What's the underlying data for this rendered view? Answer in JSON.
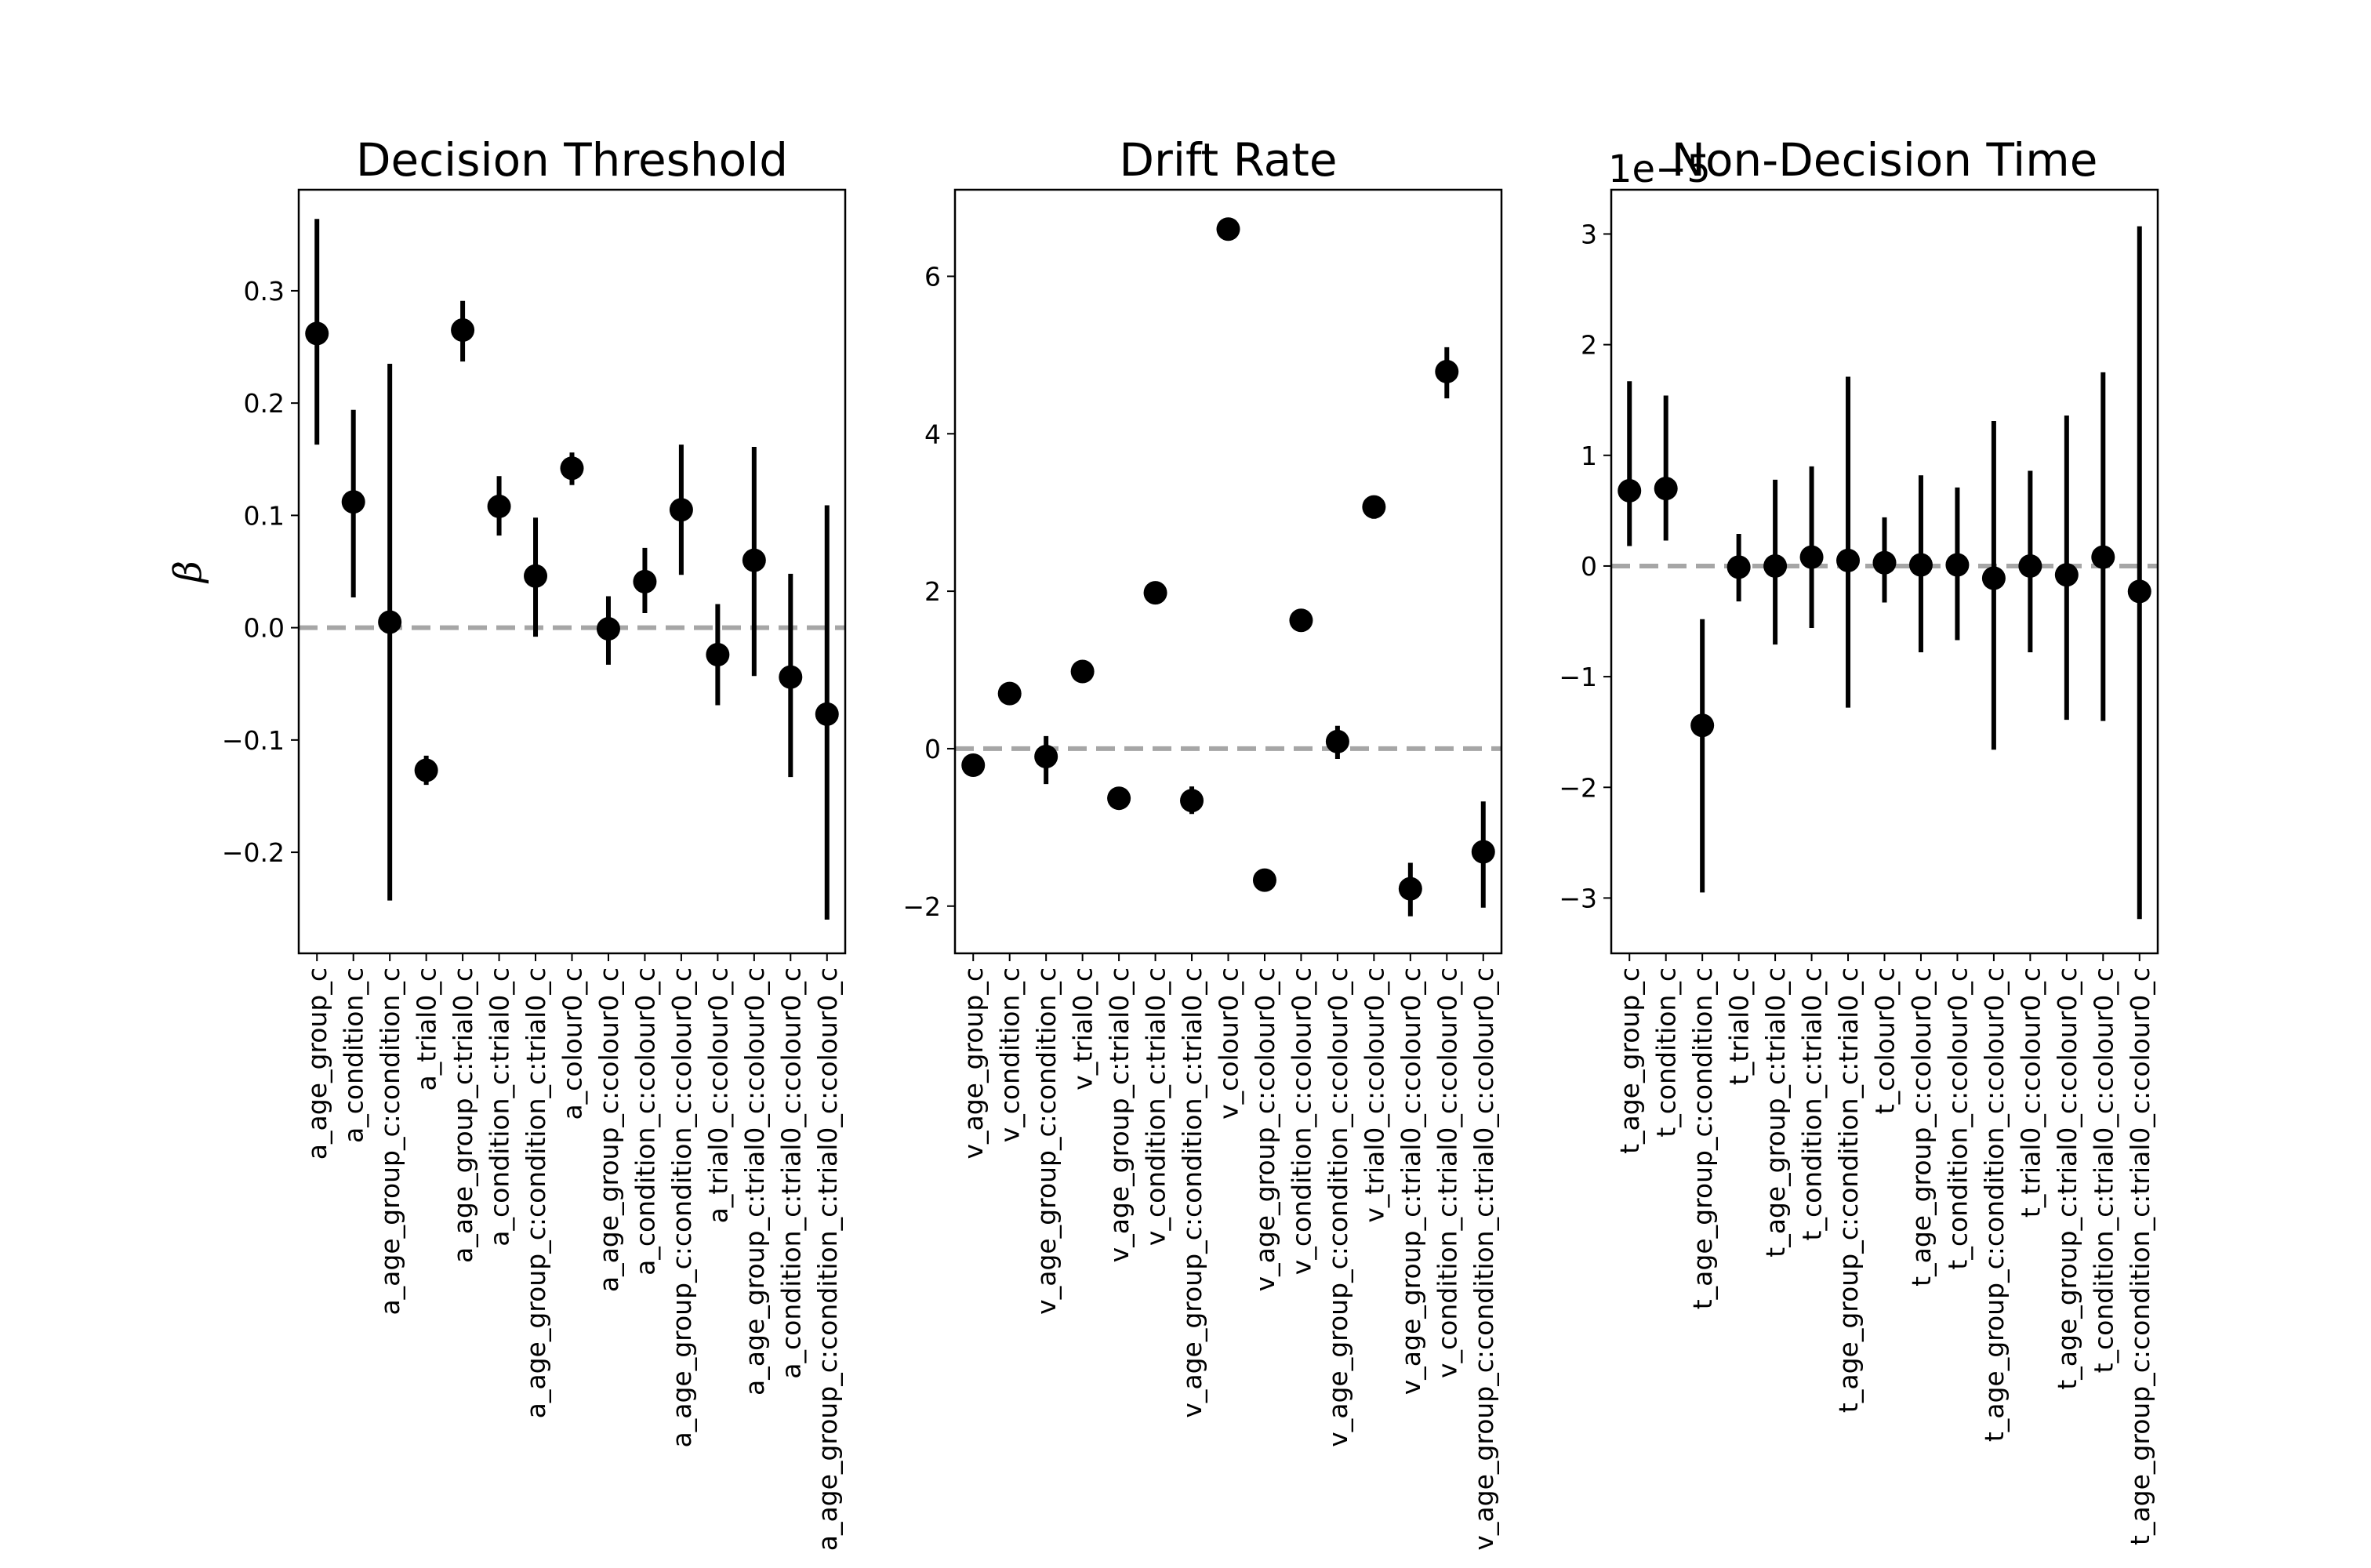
{
  "chart_data": [
    {
      "type": "scatter",
      "title": "Decision Threshold",
      "ylabel": "β",
      "offset_label": "",
      "ylim": [
        -0.29,
        0.39
      ],
      "yticks": [
        -0.2,
        -0.1,
        0.0,
        0.1,
        0.2,
        0.3
      ],
      "ytick_labels": [
        "−0.2",
        "−0.1",
        "0.0",
        "0.1",
        "0.2",
        "0.3"
      ],
      "reference_line": 0,
      "categories": [
        "a_age_group_c",
        "a_condition_c",
        "a_age_group_c:condition_c",
        "a_trial0_c",
        "a_age_group_c:trial0_c",
        "a_condition_c:trial0_c",
        "a_age_group_c:condition_c:trial0_c",
        "a_colour0_c",
        "a_age_group_c:colour0_c",
        "a_condition_c:colour0_c",
        "a_age_group_c:condition_c:colour0_c",
        "a_trial0_c:colour0_c",
        "a_age_group_c:trial0_c:colour0_c",
        "a_condition_c:trial0_c:colour0_c",
        "a_age_group_c:condition_c:trial0_c:colour0_c"
      ],
      "values": [
        0.262,
        0.112,
        0.005,
        -0.127,
        0.265,
        0.108,
        0.046,
        0.142,
        -0.001,
        0.041,
        0.105,
        -0.024,
        0.06,
        -0.044,
        -0.077
      ],
      "err_low": [
        0.163,
        0.027,
        -0.243,
        -0.14,
        0.237,
        0.082,
        -0.008,
        0.127,
        -0.033,
        0.013,
        0.047,
        -0.069,
        -0.043,
        -0.133,
        -0.26
      ],
      "err_high": [
        0.364,
        0.194,
        0.235,
        -0.114,
        0.291,
        0.135,
        0.098,
        0.156,
        0.028,
        0.071,
        0.163,
        0.021,
        0.161,
        0.048,
        0.109
      ]
    },
    {
      "type": "scatter",
      "title": "Drift Rate",
      "ylabel": "",
      "offset_label": "",
      "ylim": [
        -2.6,
        7.1
      ],
      "yticks": [
        -2,
        0,
        2,
        4,
        6
      ],
      "ytick_labels": [
        "−2",
        "0",
        "2",
        "4",
        "6"
      ],
      "reference_line": 0,
      "categories": [
        "v_age_group_c",
        "v_condition_c",
        "v_age_group_c:condition_c",
        "v_trial0_c",
        "v_age_group_c:trial0_c",
        "v_condition_c:trial0_c",
        "v_age_group_c:condition_c:trial0_c",
        "v_colour0_c",
        "v_age_group_c:colour0_c",
        "v_condition_c:colour0_c",
        "v_age_group_c:condition_c:colour0_c",
        "v_trial0_c:colour0_c",
        "v_age_group_c:trial0_c:colour0_c",
        "v_condition_c:trial0_c:colour0_c",
        "v_age_group_c:condition_c:trial0_c:colour0_c"
      ],
      "values": [
        -0.21,
        0.7,
        -0.1,
        0.98,
        -0.63,
        1.98,
        -0.66,
        6.6,
        -1.67,
        1.63,
        0.09,
        3.07,
        -1.78,
        4.79,
        -1.31
      ],
      "err_low": [
        -0.21,
        0.7,
        -0.45,
        0.98,
        -0.63,
        1.98,
        -0.83,
        6.6,
        -1.67,
        1.63,
        -0.13,
        2.92,
        -2.13,
        4.45,
        -2.02
      ],
      "err_high": [
        -0.21,
        0.7,
        0.16,
        0.98,
        -0.63,
        1.98,
        -0.48,
        6.6,
        -1.67,
        1.63,
        0.29,
        3.21,
        -1.45,
        5.1,
        -0.67
      ]
    },
    {
      "type": "scatter",
      "title": "Non-Decision Time",
      "ylabel": "",
      "offset_label": "1e−5",
      "ylim": [
        -3.5,
        3.4
      ],
      "yticks": [
        -3,
        -2,
        -1,
        0,
        1,
        2,
        3
      ],
      "ytick_labels": [
        "−3",
        "−2",
        "−1",
        "0",
        "1",
        "2",
        "3"
      ],
      "reference_line": 0,
      "categories": [
        "t_age_group_c",
        "t_condition_c",
        "t_age_group_c:condition_c",
        "t_trial0_c",
        "t_age_group_c:trial0_c",
        "t_condition_c:trial0_c",
        "t_age_group_c:condition_c:trial0_c",
        "t_colour0_c",
        "t_age_group_c:colour0_c",
        "t_condition_c:colour0_c",
        "t_age_group_c:condition_c:colour0_c",
        "t_trial0_c:colour0_c",
        "t_age_group_c:trial0_c:colour0_c",
        "t_condition_c:trial0_c:colour0_c",
        "t_age_group_c:condition_c:trial0_c:colour0_c"
      ],
      "values": [
        0.68,
        0.7,
        -1.44,
        -0.01,
        0.0,
        0.08,
        0.05,
        0.03,
        0.01,
        0.01,
        -0.11,
        0.0,
        -0.08,
        0.08,
        -0.23
      ],
      "err_low": [
        0.18,
        0.23,
        -2.95,
        -0.32,
        -0.71,
        -0.56,
        -1.28,
        -0.33,
        -0.78,
        -0.67,
        -1.66,
        -0.78,
        -1.39,
        -1.4,
        -3.19
      ],
      "err_high": [
        1.67,
        1.54,
        -0.48,
        0.29,
        0.78,
        0.9,
        1.71,
        0.44,
        0.82,
        0.71,
        1.31,
        0.86,
        1.36,
        1.75,
        3.07
      ]
    }
  ]
}
